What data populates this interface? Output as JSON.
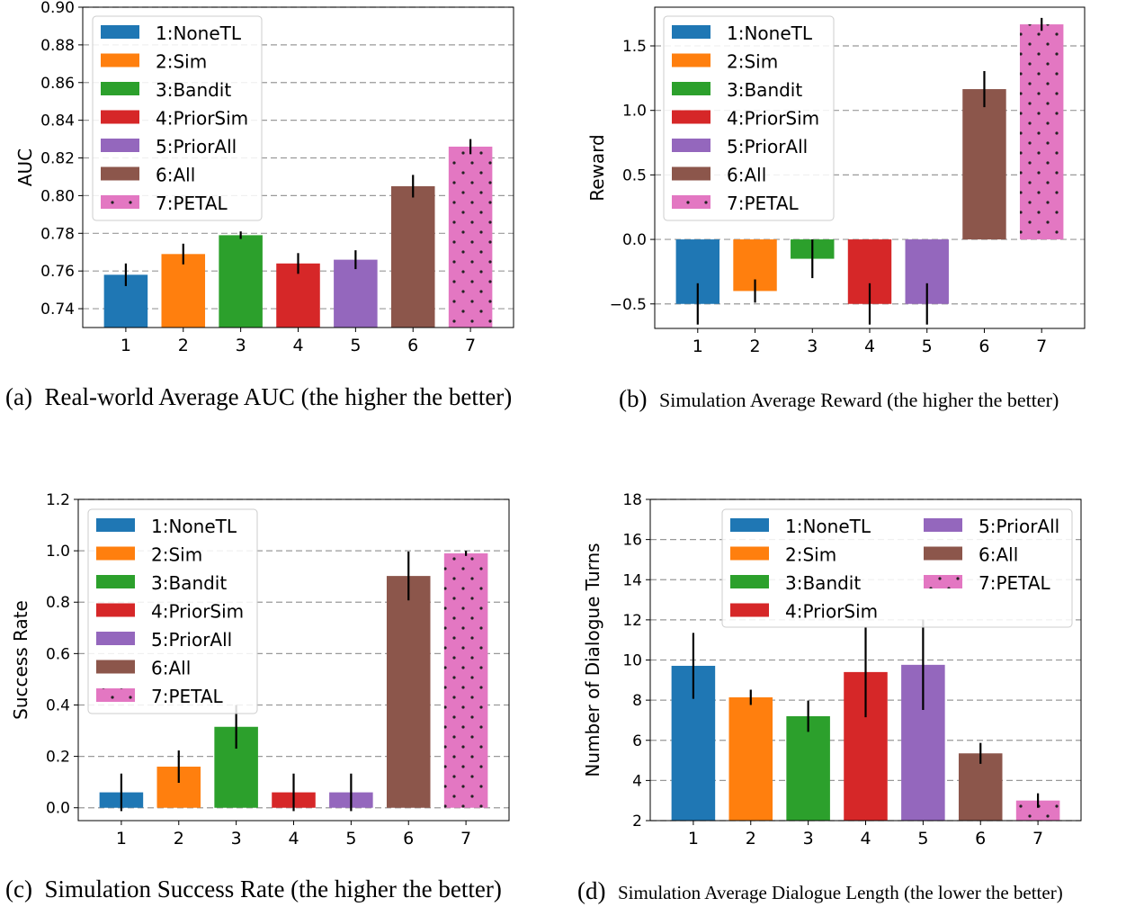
{
  "colors": [
    "#1f77b4",
    "#ff7f0e",
    "#2ca02c",
    "#d62728",
    "#9467bd",
    "#8c564b",
    "#e377c2"
  ],
  "legend_entries": [
    "1:NoneTL",
    "2:Sim",
    "3:Bandit",
    "4:PriorSim",
    "5:PriorAll",
    "6:All",
    "7:PETAL"
  ],
  "captions": [
    {
      "label": "(a)",
      "text": "Real-world Average AUC (the higher the better)"
    },
    {
      "label": "(b)",
      "text": "Simulation Average Reward (the higher the better)"
    },
    {
      "label": "(c)",
      "text": "Simulation Success Rate (the higher the better)"
    },
    {
      "label": "(d)",
      "text": "Simulation Average Dialogue Length (the lower the better)"
    }
  ],
  "chart_data": [
    {
      "type": "bar",
      "ylabel": "AUC",
      "categories": [
        "1",
        "2",
        "3",
        "4",
        "5",
        "6",
        "7"
      ],
      "values": [
        0.758,
        0.769,
        0.779,
        0.764,
        0.766,
        0.805,
        0.826
      ],
      "errors": [
        0.006,
        0.0055,
        0.002,
        0.0055,
        0.005,
        0.006,
        0.004
      ],
      "ylim": [
        0.73,
        0.9
      ],
      "yticks": [
        "0.74",
        "0.76",
        "0.78",
        "0.80",
        "0.82",
        "0.84",
        "0.86",
        "0.88",
        "0.90"
      ],
      "grid": "y-dashed",
      "legend": "upper-left",
      "hatch_last": "dots"
    },
    {
      "type": "bar",
      "ylabel": "Reward",
      "categories": [
        "1",
        "2",
        "3",
        "4",
        "5",
        "6",
        "7"
      ],
      "values": [
        -0.5,
        -0.4,
        -0.15,
        -0.5,
        -0.5,
        1.165,
        1.667
      ],
      "errors": [
        0.16,
        0.09,
        0.15,
        0.16,
        0.16,
        0.14,
        0.05
      ],
      "ylim": [
        -0.69,
        1.8
      ],
      "yticks": [
        "−0.5",
        "0.0",
        "0.5",
        "1.0",
        "1.5"
      ],
      "grid": "y-dashed",
      "legend": "upper-left",
      "hatch_last": "dots"
    },
    {
      "type": "bar",
      "ylabel": "Success Rate",
      "categories": [
        "1",
        "2",
        "3",
        "4",
        "5",
        "6",
        "7"
      ],
      "values": [
        0.06,
        0.16,
        0.315,
        0.06,
        0.06,
        0.902,
        0.99
      ],
      "errors": [
        0.073,
        0.063,
        0.085,
        0.073,
        0.073,
        0.095,
        0.01
      ],
      "ylim": [
        -0.05,
        1.2
      ],
      "yticks": [
        "0.0",
        "0.2",
        "0.4",
        "0.6",
        "0.8",
        "1.0",
        "1.2"
      ],
      "grid": "y-dashed",
      "legend": "upper-left",
      "hatch_last": "dots"
    },
    {
      "type": "bar",
      "ylabel": "Number of Dialogue Turns",
      "categories": [
        "1",
        "2",
        "3",
        "4",
        "5",
        "6",
        "7"
      ],
      "values": [
        9.71,
        8.14,
        7.2,
        9.4,
        9.76,
        5.35,
        3.0
      ],
      "errors": [
        1.64,
        0.38,
        0.78,
        2.25,
        2.25,
        0.52,
        0.36
      ],
      "ylim": [
        2,
        18
      ],
      "yticks": [
        "2",
        "4",
        "6",
        "8",
        "10",
        "12",
        "14",
        "16",
        "18"
      ],
      "grid": "y-dashed",
      "legend": "upper-right",
      "legend_columns": 2,
      "hatch_last": "dots"
    }
  ]
}
